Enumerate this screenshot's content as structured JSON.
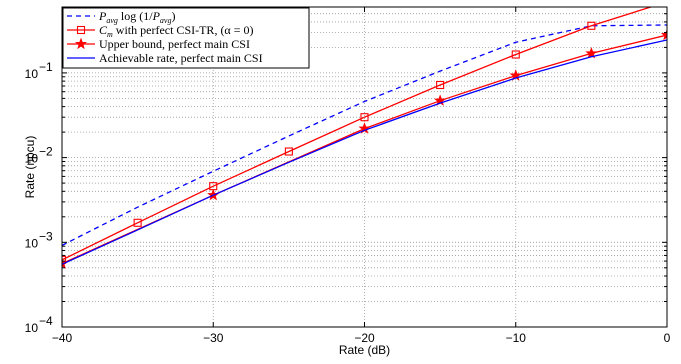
{
  "chart_data": {
    "type": "line",
    "xlabel": "Rate (dB)",
    "ylabel": "Rate (npcu)",
    "xlim": [
      -40,
      0
    ],
    "ylim": [
      0.0001,
      0.6
    ],
    "yscale": "log",
    "grid": true,
    "legend_position": "top-left",
    "x_ticks": [
      -40,
      -30,
      -20,
      -10,
      0
    ],
    "x_tick_labels": [
      "−40",
      "−30",
      "−20",
      "−10",
      "0"
    ],
    "y_ticks": [
      0.0001,
      0.001,
      0.01,
      0.1
    ],
    "series": [
      {
        "name": "P_avg log(1/P_avg)",
        "legend_main": "P",
        "legend_sub": "avg",
        "legend_mid": " log (1/",
        "legend_main2": "P",
        "legend_sub2": "avg",
        "legend_end": ")",
        "color": "#0000ff",
        "dash": "5,4",
        "marker": "none",
        "x": [
          -40,
          -35,
          -30,
          -25,
          -20,
          -15,
          -10,
          -5,
          0
        ],
        "y": [
          0.00092,
          0.0026,
          0.0069,
          0.018,
          0.046,
          0.105,
          0.23,
          0.36,
          0.368
        ]
      },
      {
        "name": "C_m with perfect CSI-TR, (α = 0)",
        "legend_main": "C",
        "legend_sub": "m",
        "legend_rest": " with perfect CSI-TR, (α = 0)",
        "color": "#ff0000",
        "dash": "",
        "marker": "square",
        "x": [
          -40,
          -35,
          -30,
          -25,
          -20,
          -15,
          -10,
          -5,
          0
        ],
        "y": [
          0.00062,
          0.0017,
          0.0046,
          0.0118,
          0.03,
          0.072,
          0.165,
          0.36,
          0.69
        ]
      },
      {
        "name": "Upper bound, perfect main CSI",
        "color": "#ff0000",
        "dash": "",
        "marker": "star",
        "x": [
          -40,
          -30,
          -20,
          -15,
          -10,
          -5,
          0
        ],
        "y": [
          0.00056,
          0.0036,
          0.022,
          0.047,
          0.093,
          0.17,
          0.28
        ]
      },
      {
        "name": "Achievable rate, perfect main CSI",
        "color": "#0000ff",
        "dash": "",
        "marker": "none",
        "x": [
          -40,
          -35,
          -30,
          -25,
          -20,
          -15,
          -10,
          -5,
          0
        ],
        "y": [
          0.00055,
          0.0014,
          0.0036,
          0.0088,
          0.021,
          0.044,
          0.087,
          0.155,
          0.245
        ]
      }
    ]
  }
}
